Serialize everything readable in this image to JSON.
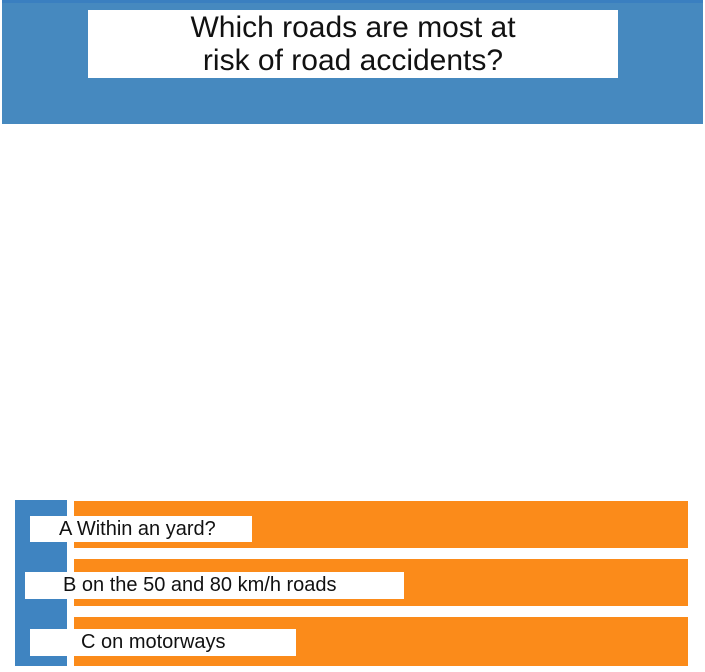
{
  "question": {
    "line1": "Which roads are most at",
    "line2": "risk of road accidents?"
  },
  "answers": [
    {
      "letter": "A",
      "text": "Within an yard?"
    },
    {
      "letter": "B",
      "text": "on the 50 and 80 km/h roads"
    },
    {
      "letter": "C",
      "text": "on motorways"
    }
  ],
  "colors": {
    "header_blue": "#4689bf",
    "rail_blue": "#3f84c1",
    "answer_orange": "#fb8b1a"
  }
}
